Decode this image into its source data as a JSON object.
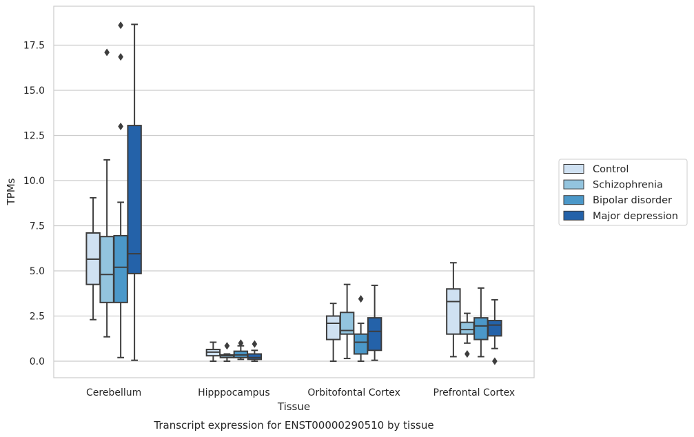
{
  "chart_data": {
    "type": "box",
    "xlabel": "Tissue",
    "ylabel": "TPMs",
    "caption": "Transcript expression for ENST00000290510 by tissue",
    "ylim": [
      -0.9,
      19.6
    ],
    "yticks": [
      0.0,
      2.5,
      5.0,
      7.5,
      10.0,
      12.5,
      15.0,
      17.5
    ],
    "ytick_labels": [
      "0.0",
      "2.5",
      "5.0",
      "7.5",
      "10.0",
      "12.5",
      "15.0",
      "17.5"
    ],
    "categories": [
      "Cerebellum",
      "Hipppocampus",
      "Orbitofontal Cortex",
      "Prefrontal Cortex"
    ],
    "grid": "horizontal",
    "legend_position": "right",
    "series": [
      {
        "name": "Control",
        "color": "#cfe1f2",
        "boxes": [
          {
            "whislo": 2.3,
            "q1": 4.25,
            "med": 5.65,
            "q3": 7.1,
            "whishi": 9.05,
            "fliers": []
          },
          {
            "whislo": 0.0,
            "q1": 0.3,
            "med": 0.5,
            "q3": 0.65,
            "whishi": 1.05,
            "fliers": []
          },
          {
            "whislo": 0.0,
            "q1": 1.2,
            "med": 2.1,
            "q3": 2.5,
            "whishi": 3.2,
            "fliers": []
          },
          {
            "whislo": 0.25,
            "q1": 1.5,
            "med": 3.3,
            "q3": 4.0,
            "whishi": 5.45,
            "fliers": []
          }
        ]
      },
      {
        "name": "Schizophrenia",
        "color": "#93c4de",
        "boxes": [
          {
            "whislo": 1.35,
            "q1": 3.25,
            "med": 4.8,
            "q3": 6.9,
            "whishi": 11.15,
            "fliers": [
              17.1
            ]
          },
          {
            "whislo": 0.0,
            "q1": 0.2,
            "med": 0.3,
            "q3": 0.35,
            "whishi": 0.4,
            "fliers": [
              0.85
            ]
          },
          {
            "whislo": 0.15,
            "q1": 1.5,
            "med": 1.7,
            "q3": 2.7,
            "whishi": 4.25,
            "fliers": []
          },
          {
            "whislo": 1.0,
            "q1": 1.5,
            "med": 1.75,
            "q3": 2.15,
            "whishi": 2.65,
            "fliers": [
              0.4
            ]
          }
        ]
      },
      {
        "name": "Bipolar disorder",
        "color": "#4b98c9",
        "boxes": [
          {
            "whislo": 0.2,
            "q1": 3.25,
            "med": 5.2,
            "q3": 6.95,
            "whishi": 8.8,
            "fliers": [
              18.6,
              16.85,
              13.0
            ]
          },
          {
            "whislo": 0.1,
            "q1": 0.2,
            "med": 0.35,
            "q3": 0.55,
            "whishi": 0.85,
            "fliers": [
              1.0
            ]
          },
          {
            "whislo": 0.0,
            "q1": 0.4,
            "med": 1.05,
            "q3": 1.5,
            "whishi": 2.1,
            "fliers": [
              3.45
            ]
          },
          {
            "whislo": 0.25,
            "q1": 1.2,
            "med": 1.95,
            "q3": 2.4,
            "whishi": 4.05,
            "fliers": []
          }
        ]
      },
      {
        "name": "Major depression",
        "color": "#2462a9",
        "boxes": [
          {
            "whislo": 0.05,
            "q1": 4.85,
            "med": 5.95,
            "q3": 13.05,
            "whishi": 18.65,
            "fliers": []
          },
          {
            "whislo": 0.0,
            "q1": 0.1,
            "med": 0.2,
            "q3": 0.4,
            "whishi": 0.6,
            "fliers": [
              0.95
            ]
          },
          {
            "whislo": 0.05,
            "q1": 0.6,
            "med": 1.65,
            "q3": 2.4,
            "whishi": 4.2,
            "fliers": []
          },
          {
            "whislo": 0.7,
            "q1": 1.4,
            "med": 2.0,
            "q3": 2.25,
            "whishi": 3.4,
            "fliers": [
              0.0
            ]
          }
        ]
      }
    ]
  }
}
